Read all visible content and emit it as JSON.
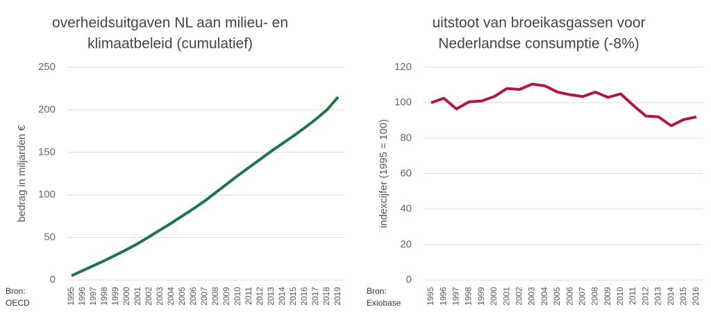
{
  "chart_data": [
    {
      "type": "line",
      "title": [
        "overheidsuitgaven NL aan milieu- en",
        "klimaatbeleid (cumulatief)"
      ],
      "y_label": "bedrag in miljarden €",
      "source": [
        "Bron:",
        "OECD"
      ],
      "categories": [
        "1995",
        "1996",
        "1997",
        "1998",
        "1999",
        "2000",
        "2001",
        "2002",
        "2003",
        "2004",
        "2005",
        "2006",
        "2007",
        "2008",
        "2009",
        "2010",
        "2011",
        "2012",
        "2013",
        "2014",
        "2015",
        "2016",
        "2017",
        "2018",
        "2019"
      ],
      "values": [
        5,
        11,
        17,
        23,
        29.5,
        36,
        43,
        51,
        59,
        67,
        75.5,
        84,
        93,
        103,
        113,
        123,
        132.5,
        142,
        151.5,
        160.5,
        169.5,
        179,
        189,
        200,
        215
      ],
      "color": "#1b7545",
      "ylim": [
        0,
        250
      ],
      "yticks": [
        0,
        50,
        100,
        150,
        200,
        250
      ],
      "grid": true
    },
    {
      "type": "line",
      "title": [
        "uitstoot van broeikasgassen voor",
        "Nederlandse consumptie (-8%)"
      ],
      "y_label": "indexcijfer (1995 = 100)",
      "source": [
        "Bron:",
        "Exiobase"
      ],
      "categories": [
        "1995",
        "1996",
        "1997",
        "1998",
        "1999",
        "2000",
        "2001",
        "2002",
        "2003",
        "2004",
        "2005",
        "2006",
        "2007",
        "2008",
        "2009",
        "2010",
        "2011",
        "2012",
        "2013",
        "2014",
        "2015",
        "2016"
      ],
      "values": [
        100,
        102.5,
        96.5,
        100.5,
        101,
        103.5,
        108,
        107.5,
        110.5,
        109.5,
        106,
        104.5,
        103.5,
        106,
        103,
        105,
        98.5,
        92.5,
        92,
        87,
        90.5,
        92
      ],
      "color": "#b3163f",
      "ylim": [
        0,
        120
      ],
      "yticks": [
        0,
        20,
        40,
        60,
        80,
        100,
        120
      ],
      "grid": true
    }
  ]
}
